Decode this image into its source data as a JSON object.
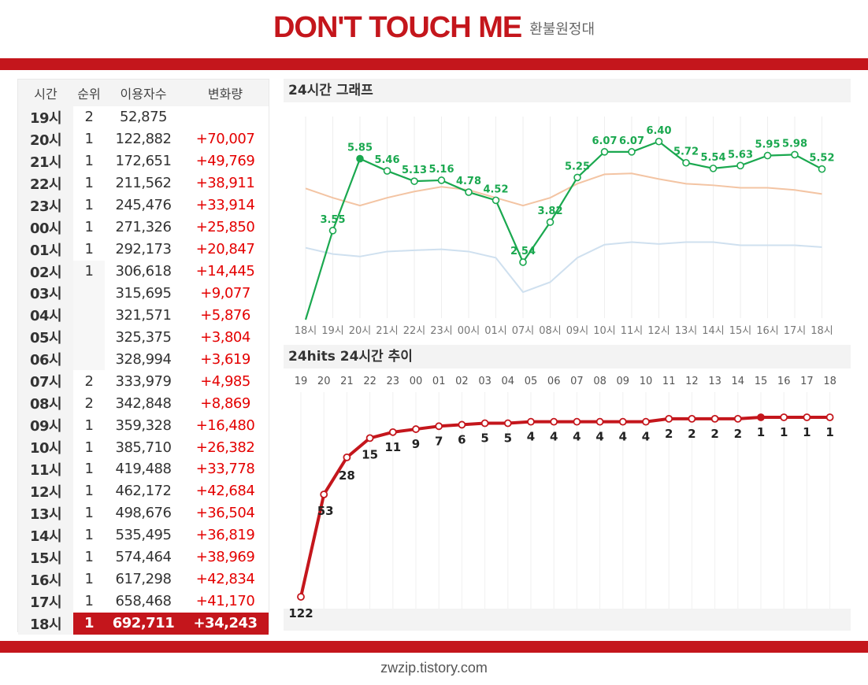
{
  "header": {
    "title": "DON'T TOUCH ME",
    "subtitle": "환불원정대"
  },
  "footer": {
    "site": "zwzip.tistory.com"
  },
  "table": {
    "columns": [
      "시간",
      "순위",
      "이용자수",
      "변화량"
    ],
    "rows": [
      {
        "time": "19시",
        "rank": "2",
        "users": "52,875",
        "change": ""
      },
      {
        "time": "20시",
        "rank": "1",
        "users": "122,882",
        "change": "+70,007"
      },
      {
        "time": "21시",
        "rank": "1",
        "users": "172,651",
        "change": "+49,769"
      },
      {
        "time": "22시",
        "rank": "1",
        "users": "211,562",
        "change": "+38,911"
      },
      {
        "time": "23시",
        "rank": "1",
        "users": "245,476",
        "change": "+33,914"
      },
      {
        "time": "00시",
        "rank": "1",
        "users": "271,326",
        "change": "+25,850"
      },
      {
        "time": "01시",
        "rank": "1",
        "users": "292,173",
        "change": "+20,847"
      },
      {
        "time": "02시",
        "rank": "1",
        "users": "306,618",
        "change": "+14,445"
      },
      {
        "time": "03시",
        "rank": "",
        "users": "315,695",
        "change": "+9,077"
      },
      {
        "time": "04시",
        "rank": "",
        "users": "321,571",
        "change": "+5,876"
      },
      {
        "time": "05시",
        "rank": "",
        "users": "325,375",
        "change": "+3,804"
      },
      {
        "time": "06시",
        "rank": "",
        "users": "328,994",
        "change": "+3,619"
      },
      {
        "time": "07시",
        "rank": "2",
        "users": "333,979",
        "change": "+4,985"
      },
      {
        "time": "08시",
        "rank": "2",
        "users": "342,848",
        "change": "+8,869"
      },
      {
        "time": "09시",
        "rank": "1",
        "users": "359,328",
        "change": "+16,480"
      },
      {
        "time": "10시",
        "rank": "1",
        "users": "385,710",
        "change": "+26,382"
      },
      {
        "time": "11시",
        "rank": "1",
        "users": "419,488",
        "change": "+33,778"
      },
      {
        "time": "12시",
        "rank": "1",
        "users": "462,172",
        "change": "+42,684"
      },
      {
        "time": "13시",
        "rank": "1",
        "users": "498,676",
        "change": "+36,504"
      },
      {
        "time": "14시",
        "rank": "1",
        "users": "535,495",
        "change": "+36,819"
      },
      {
        "time": "15시",
        "rank": "1",
        "users": "574,464",
        "change": "+38,969"
      },
      {
        "time": "16시",
        "rank": "1",
        "users": "617,298",
        "change": "+42,834"
      },
      {
        "time": "17시",
        "rank": "1",
        "users": "658,468",
        "change": "+41,170"
      },
      {
        "time": "18시",
        "rank": "1",
        "users": "692,711",
        "change": "+34,243"
      }
    ]
  },
  "colors": {
    "accent": "#c4161c",
    "main_line": "#1aa84f",
    "orange_line": "#f3c4a3",
    "blue_line": "#cfe0ef",
    "change_text": "#e40000"
  },
  "chart_data": [
    {
      "type": "line",
      "title": "24시간 그래프",
      "categories": [
        "18시",
        "19시",
        "20시",
        "21시",
        "22시",
        "23시",
        "00시",
        "01시",
        "07시",
        "08시",
        "09시",
        "10시",
        "11시",
        "12시",
        "13시",
        "14시",
        "15시",
        "16시",
        "17시",
        "18시"
      ],
      "series": [
        {
          "values": [
            null,
            3.55,
            5.85,
            5.46,
            5.13,
            5.16,
            4.78,
            4.52,
            2.54,
            3.82,
            5.25,
            6.07,
            6.07,
            6.4,
            5.72,
            5.54,
            5.63,
            5.95,
            5.98,
            5.52
          ],
          "labels": [
            "",
            "3.55",
            "5.85",
            "5.46",
            "5.13",
            "5.16",
            "4.78",
            "4.52",
            "2.54",
            "3.82",
            "5.25",
            "6.07",
            "6.07",
            "6.40",
            "5.72",
            "5.54",
            "5.63",
            "5.95",
            "5.98",
            "5.52"
          ]
        },
        {
          "values": [
            4.9,
            4.6,
            4.35,
            4.6,
            4.8,
            4.95,
            4.85,
            4.6,
            4.35,
            4.6,
            5.05,
            5.35,
            5.38,
            5.2,
            5.05,
            5.0,
            4.92,
            4.92,
            4.85,
            4.72
          ]
        },
        {
          "values": [
            3.0,
            2.8,
            2.72,
            2.88,
            2.92,
            2.95,
            2.88,
            2.68,
            1.58,
            1.9,
            2.68,
            3.1,
            3.18,
            3.12,
            3.18,
            3.18,
            3.08,
            3.08,
            3.08,
            3.02
          ]
        }
      ],
      "ylim": [
        0.8,
        7.2
      ]
    },
    {
      "type": "line",
      "title": "24hits 24시간 추이",
      "categories": [
        "19",
        "20",
        "21",
        "22",
        "23",
        "00",
        "01",
        "02",
        "03",
        "04",
        "05",
        "06",
        "07",
        "08",
        "09",
        "10",
        "11",
        "12",
        "13",
        "14",
        "15",
        "16",
        "17",
        "18"
      ],
      "series": [
        {
          "values": [
            122,
            53,
            28,
            15,
            11,
            9,
            7,
            6,
            5,
            5,
            4,
            4,
            4,
            4,
            4,
            4,
            2,
            2,
            2,
            2,
            1,
            1,
            1,
            1
          ]
        }
      ]
    }
  ]
}
